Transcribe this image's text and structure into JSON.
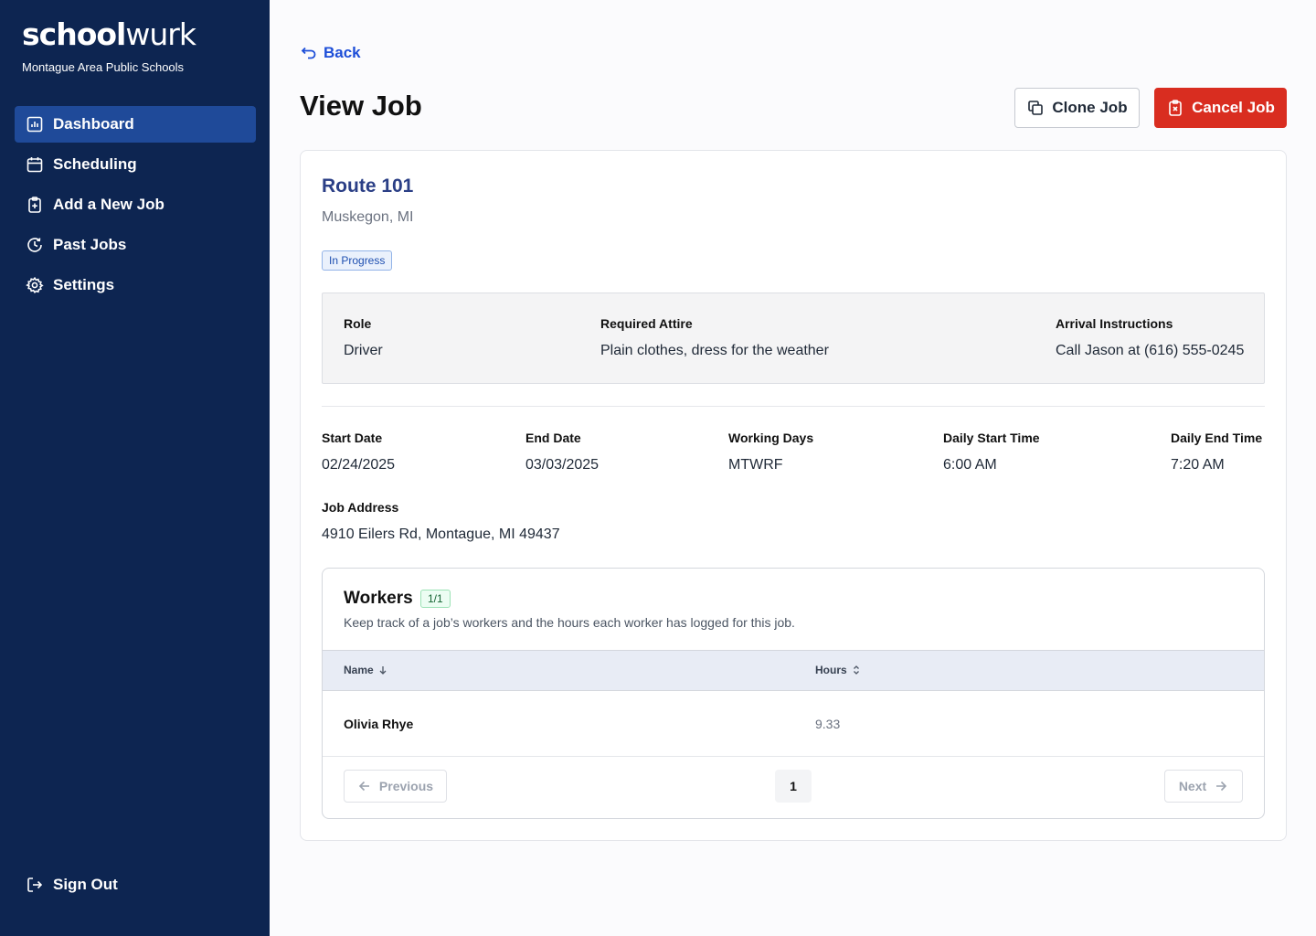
{
  "brand": {
    "name_bold": "school",
    "name_light": "wurk",
    "org": "Montague Area Public Schools"
  },
  "nav": {
    "items": [
      {
        "label": "Dashboard",
        "icon": "chart-icon",
        "active": true
      },
      {
        "label": "Scheduling",
        "icon": "calendar-icon",
        "active": false
      },
      {
        "label": "Add a New Job",
        "icon": "clipboard-plus-icon",
        "active": false
      },
      {
        "label": "Past Jobs",
        "icon": "clock-history-icon",
        "active": false
      },
      {
        "label": "Settings",
        "icon": "gear-icon",
        "active": false
      }
    ],
    "sign_out": "Sign Out"
  },
  "header": {
    "back": "Back",
    "title": "View Job",
    "clone_label": "Clone Job",
    "cancel_label": "Cancel Job"
  },
  "job": {
    "title": "Route 101",
    "location": "Muskegon, MI",
    "status": "In Progress",
    "role_label": "Role",
    "role": "Driver",
    "attire_label": "Required Attire",
    "attire": "Plain clothes, dress for the weather",
    "arrival_label": "Arrival Instructions",
    "arrival": "Call Jason at (616) 555-0245",
    "start_date_label": "Start Date",
    "start_date": "02/24/2025",
    "end_date_label": "End Date",
    "end_date": "03/03/2025",
    "working_days_label": "Working Days",
    "working_days": "MTWRF",
    "daily_start_label": "Daily Start Time",
    "daily_start": "6:00 AM",
    "daily_end_label": "Daily End Time",
    "daily_end": "7:20 AM",
    "address_label": "Job Address",
    "address": "4910 Eilers Rd, Montague, MI 49437"
  },
  "workers": {
    "title": "Workers",
    "count": "1/1",
    "description": "Keep track of a job’s workers and the hours each worker has logged for this job.",
    "columns": [
      "Name",
      "Hours"
    ],
    "rows": [
      {
        "name": "Olivia Rhye",
        "hours": "9.33"
      }
    ],
    "pagination": {
      "previous": "Previous",
      "next": "Next",
      "current": "1"
    }
  },
  "colors": {
    "sidebar": "#0d2551",
    "active_nav": "#1f4a99",
    "accent": "#1d4ed8",
    "danger": "#d92d20"
  }
}
